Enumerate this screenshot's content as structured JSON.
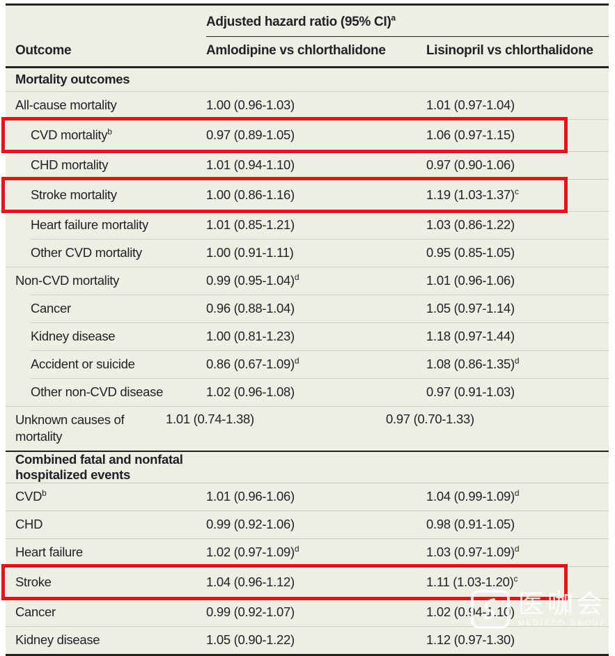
{
  "table": {
    "spanner_label": "Adjusted hazard ratio (95% CI)",
    "spanner_sup": "a",
    "columns": {
      "outcome": "Outcome",
      "amlodipine": "Amlodipine vs chlorthalidone",
      "lisinopril": "Lisinopril vs chlorthalidone"
    }
  },
  "rows": [
    {
      "type": "section",
      "label": "Mortality outcomes"
    },
    {
      "label": "All-cause mortality",
      "indent": 0,
      "amlodipine": "1.00 (0.96-1.03)",
      "lisinopril": "1.01 (0.97-1.04)"
    },
    {
      "label": "CVD mortality",
      "label_sup": "b",
      "indent": 1,
      "amlodipine": "0.97 (0.89-1.05)",
      "lisinopril": "1.06 (0.97-1.15)",
      "highlight": true
    },
    {
      "label": "CHD mortality",
      "indent": 1,
      "amlodipine": "1.01 (0.94-1.10)",
      "lisinopril": "0.97 (0.90-1.06)"
    },
    {
      "label": "Stroke mortality",
      "indent": 1,
      "amlodipine": "1.00 (0.86-1.16)",
      "lisinopril": "1.19 (1.03-1.37)",
      "lisinopril_sup": "c",
      "highlight": true
    },
    {
      "label": "Heart failure mortality",
      "indent": 1,
      "amlodipine": "1.01 (0.85-1.21)",
      "lisinopril": "1.03 (0.86-1.22)"
    },
    {
      "label": "Other CVD mortality",
      "indent": 1,
      "amlodipine": "1.00 (0.91-1.11)",
      "lisinopril": "0.95 (0.85-1.05)"
    },
    {
      "label": "Non-CVD mortality",
      "indent": 0,
      "amlodipine": "0.99 (0.95-1.04)",
      "amlodipine_sup": "d",
      "lisinopril": "1.01 (0.96-1.06)"
    },
    {
      "label": "Cancer",
      "indent": 1,
      "amlodipine": "0.96 (0.88-1.04)",
      "lisinopril": "1.05 (0.97-1.14)"
    },
    {
      "label": "Kidney disease",
      "indent": 1,
      "amlodipine": "1.00 (0.81-1.23)",
      "lisinopril": "1.18 (0.97-1.44)"
    },
    {
      "label": "Accident or suicide",
      "indent": 1,
      "amlodipine": "0.86 (0.67-1.09)",
      "amlodipine_sup": "d",
      "lisinopril": "1.08 (0.86-1.35)",
      "lisinopril_sup": "d"
    },
    {
      "label": "Other non-CVD disease",
      "indent": 1,
      "amlodipine": "1.02 (0.96-1.08)",
      "lisinopril": "0.97 (0.91-1.03)"
    },
    {
      "label": "Unknown causes of mortality",
      "indent": 0,
      "wrap": true,
      "amlodipine": "1.01 (0.74-1.38)",
      "lisinopril": "0.97 (0.70-1.33)"
    },
    {
      "type": "section",
      "label": "Combined fatal and nonfatal hospitalized events",
      "rule_above": true
    },
    {
      "label": "CVD",
      "label_sup": "b",
      "indent": 0,
      "amlodipine": "1.01 (0.96-1.06)",
      "lisinopril": "1.04 (0.99-1.09)",
      "lisinopril_sup": "d"
    },
    {
      "label": "CHD",
      "indent": 0,
      "amlodipine": "0.99 (0.92-1.06)",
      "lisinopril": "0.98 (0.91-1.05)"
    },
    {
      "label": "Heart failure",
      "indent": 0,
      "amlodipine": "1.02 (0.97-1.09)",
      "amlodipine_sup": "d",
      "lisinopril": "1.03 (0.97-1.09)",
      "lisinopril_sup": "d"
    },
    {
      "label": "Stroke",
      "indent": 0,
      "amlodipine": "1.04 (0.96-1.12)",
      "lisinopril": "1.11 (1.03-1.20)",
      "lisinopril_sup": "c",
      "highlight": true
    },
    {
      "label": "Cancer",
      "indent": 0,
      "amlodipine": "0.99 (0.92-1.07)",
      "lisinopril": "1.02 (0.94-1.10)"
    },
    {
      "label": "Kidney disease",
      "indent": 0,
      "amlodipine": "1.05 (0.90-1.22)",
      "lisinopril": "1.12 (0.97-1.30)"
    }
  ],
  "watermark": {
    "name": "医咖会",
    "subtitle": "MEDIECO GROUP"
  },
  "colors": {
    "highlight_box": "#e0161d",
    "table_background": "#efeee4",
    "rule": "#232325",
    "row_separator": "#cfcec2",
    "text": "#212227"
  }
}
